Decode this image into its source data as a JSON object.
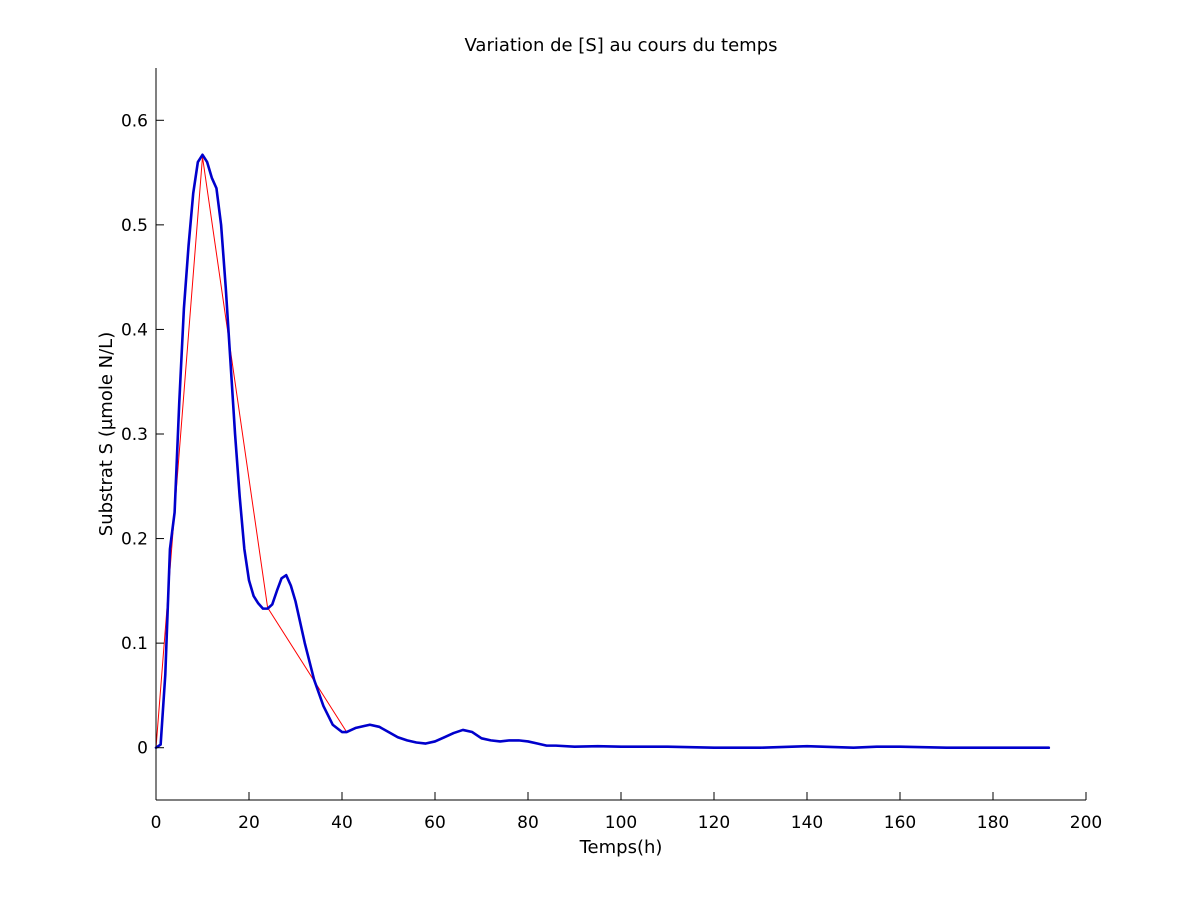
{
  "chart_data": {
    "type": "line",
    "title": "Variation de [S] au cours du temps",
    "xlabel": "Temps(h)",
    "ylabel": "Substrat S (µmole N/L)",
    "xlim": [
      0,
      200
    ],
    "ylim": [
      -0.05,
      0.65
    ],
    "xticks": [
      0,
      20,
      40,
      60,
      80,
      100,
      120,
      140,
      160,
      180,
      200
    ],
    "yticks": [
      0,
      0.1,
      0.2,
      0.3,
      0.4,
      0.5,
      0.6
    ],
    "grid": false,
    "series": [
      {
        "color": "#ff0000",
        "style": "thin",
        "x": [
          0,
          10,
          24,
          41
        ],
        "y": [
          0,
          0.565,
          0.134,
          0.015
        ]
      },
      {
        "color": "#0000cc",
        "style": "thick",
        "x": [
          0,
          1,
          2,
          3,
          4,
          5,
          6,
          7,
          8,
          9,
          10,
          11,
          12,
          13,
          14,
          15,
          16,
          17,
          18,
          19,
          20,
          21,
          22,
          23,
          24,
          25,
          26,
          27,
          28,
          29,
          30,
          32,
          34,
          36,
          38,
          40,
          41,
          43,
          45,
          46,
          48,
          50,
          52,
          54,
          56,
          58,
          60,
          62,
          64,
          66,
          68,
          70,
          72,
          74,
          76,
          78,
          80,
          82,
          84,
          86,
          90,
          95,
          100,
          110,
          120,
          130,
          140,
          150,
          155,
          160,
          170,
          180,
          192
        ],
        "y": [
          0,
          0.003,
          0.07,
          0.19,
          0.225,
          0.33,
          0.42,
          0.48,
          0.53,
          0.56,
          0.567,
          0.56,
          0.545,
          0.535,
          0.5,
          0.44,
          0.37,
          0.3,
          0.24,
          0.19,
          0.16,
          0.145,
          0.138,
          0.133,
          0.133,
          0.137,
          0.15,
          0.162,
          0.165,
          0.155,
          0.14,
          0.1,
          0.065,
          0.04,
          0.022,
          0.015,
          0.015,
          0.019,
          0.021,
          0.022,
          0.02,
          0.015,
          0.01,
          0.007,
          0.005,
          0.004,
          0.006,
          0.01,
          0.014,
          0.017,
          0.015,
          0.009,
          0.007,
          0.006,
          0.007,
          0.007,
          0.006,
          0.004,
          0.002,
          0.002,
          0.001,
          0.0015,
          0.001,
          0.001,
          0.0,
          0.0,
          0.0015,
          0.0,
          0.001,
          0.001,
          0.0,
          0.0,
          0.0
        ]
      }
    ]
  }
}
